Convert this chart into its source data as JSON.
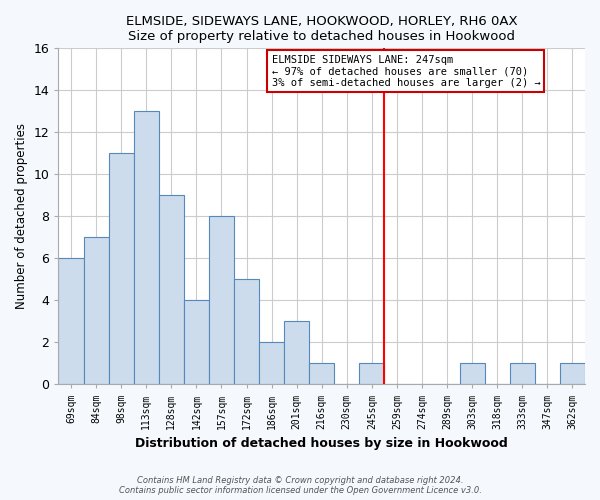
{
  "title": "ELMSIDE, SIDEWAYS LANE, HOOKWOOD, HORLEY, RH6 0AX",
  "subtitle": "Size of property relative to detached houses in Hookwood",
  "xlabel": "Distribution of detached houses by size in Hookwood",
  "ylabel": "Number of detached properties",
  "bar_labels": [
    "69sqm",
    "84sqm",
    "98sqm",
    "113sqm",
    "128sqm",
    "142sqm",
    "157sqm",
    "172sqm",
    "186sqm",
    "201sqm",
    "216sqm",
    "230sqm",
    "245sqm",
    "259sqm",
    "274sqm",
    "289sqm",
    "303sqm",
    "318sqm",
    "333sqm",
    "347sqm",
    "362sqm"
  ],
  "bar_values": [
    6,
    7,
    11,
    13,
    9,
    4,
    8,
    5,
    2,
    3,
    1,
    0,
    1,
    0,
    0,
    0,
    1,
    0,
    1,
    0,
    1
  ],
  "bar_color": "#ccdcec",
  "bar_edge_color": "#5588bb",
  "vline_x_index": 12,
  "vline_color": "red",
  "ylim": [
    0,
    16
  ],
  "yticks": [
    0,
    2,
    4,
    6,
    8,
    10,
    12,
    14,
    16
  ],
  "annotation_title": "ELMSIDE SIDEWAYS LANE: 247sqm",
  "annotation_line1": "← 97% of detached houses are smaller (70)",
  "annotation_line2": "3% of semi-detached houses are larger (2) →",
  "annotation_box_color": "#ffffff",
  "annotation_box_edge": "#cc0000",
  "footer_line1": "Contains HM Land Registry data © Crown copyright and database right 2024.",
  "footer_line2": "Contains public sector information licensed under the Open Government Licence v3.0.",
  "plot_bg_color": "#ffffff",
  "fig_bg_color": "#f5f8fc",
  "grid_color": "#cccccc"
}
